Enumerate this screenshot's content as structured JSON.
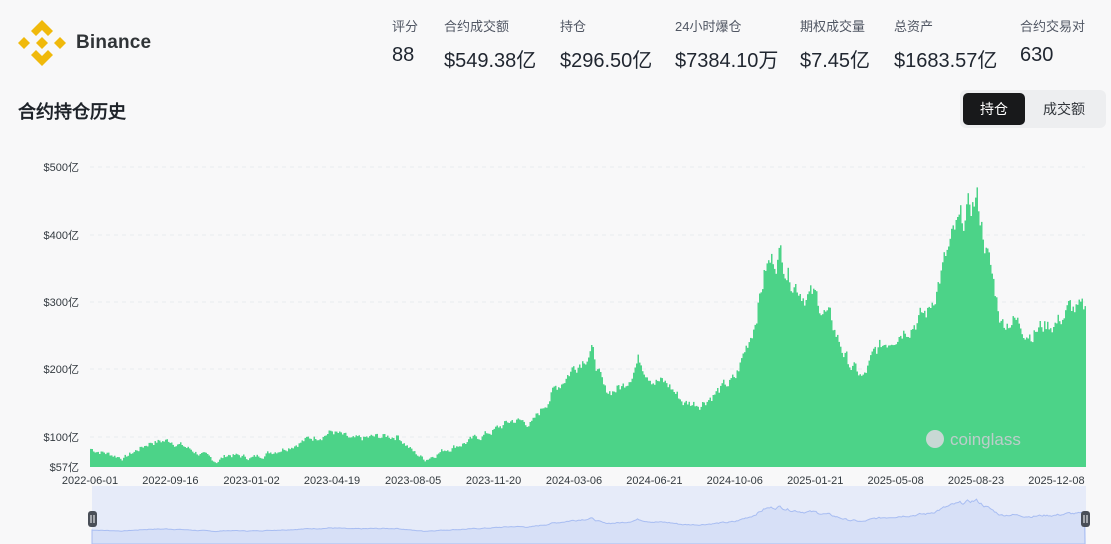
{
  "brand": {
    "name": "Binance",
    "logo_color": "#F0B90B"
  },
  "stats": [
    {
      "label": "评分",
      "value": "88"
    },
    {
      "label": "合约成交额",
      "value": "$549.38亿"
    },
    {
      "label": "持仓",
      "value": "$296.50亿"
    },
    {
      "label": "24小时爆仓",
      "value": "$7384.10万"
    },
    {
      "label": "期权成交量",
      "value": "$7.45亿"
    },
    {
      "label": "总资产",
      "value": "$1683.57亿"
    },
    {
      "label": "合约交易对",
      "value": "630"
    }
  ],
  "section": {
    "title": "合约持仓历史"
  },
  "toggle": {
    "active": "持仓",
    "inactive": "成交额"
  },
  "watermark": "coinglass",
  "colors": {
    "bars": "#4cd388",
    "grid": "#e9ebee",
    "navigator": "#e6ebf9",
    "navigator_line": "#a8bdf2"
  },
  "chart_data": {
    "type": "bar",
    "y_tick_labels": [
      "$57亿",
      "$100亿",
      "$200亿",
      "$300亿",
      "$400亿",
      "$500亿"
    ],
    "y_ticks": [
      57,
      100,
      200,
      300,
      400,
      500
    ],
    "ylim": [
      57,
      500
    ],
    "x_tick_labels": [
      "2022-06-01",
      "2022-09-16",
      "2023-01-02",
      "2023-04-19",
      "2023-08-05",
      "2023-11-20",
      "2024-03-06",
      "2024-06-21",
      "2024-10-06",
      "2025-01-21",
      "2025-05-08",
      "2025-08-23",
      "2025-12-08"
    ],
    "grid": true,
    "legend": "none",
    "series": [
      {
        "x": [
          "2022-06-01",
          "2022-07-15",
          "2022-08-20",
          "2022-09-16",
          "2022-10-20",
          "2022-11-15",
          "2022-12-01",
          "2023-01-02",
          "2023-02-15",
          "2023-03-20",
          "2023-04-19",
          "2023-05-15",
          "2023-06-15",
          "2023-07-15",
          "2023-08-05",
          "2023-08-20",
          "2023-09-15",
          "2023-10-20",
          "2023-11-20",
          "2023-12-15",
          "2024-01-10",
          "2024-02-05",
          "2024-03-06",
          "2024-03-28",
          "2024-04-15",
          "2024-05-10",
          "2024-05-30",
          "2024-06-21",
          "2024-07-10",
          "2024-07-30",
          "2024-08-20",
          "2024-09-10",
          "2024-10-06",
          "2024-10-30",
          "2024-11-15",
          "2024-12-05",
          "2024-12-18",
          "2025-01-05",
          "2025-01-21",
          "2025-02-10",
          "2025-03-05",
          "2025-03-25",
          "2025-04-10",
          "2025-05-08",
          "2025-05-30",
          "2025-06-20",
          "2025-07-10",
          "2025-07-25",
          "2025-08-10",
          "2025-08-23",
          "2025-09-10",
          "2025-09-25",
          "2025-10-10",
          "2025-10-20",
          "2025-11-05",
          "2025-11-20",
          "2025-12-08",
          "2025-12-25",
          "2026-01-10"
        ],
        "values": [
          83,
          70,
          93,
          95,
          78,
          65,
          75,
          70,
          85,
          98,
          108,
          95,
          100,
          102,
          78,
          68,
          82,
          95,
          110,
          125,
          120,
          165,
          205,
          230,
          165,
          175,
          215,
          185,
          175,
          150,
          150,
          165,
          185,
          265,
          350,
          375,
          340,
          315,
          305,
          270,
          210,
          185,
          225,
          255,
          270,
          285,
          355,
          400,
          430,
          455,
          350,
          270,
          275,
          265,
          255,
          265,
          270,
          290,
          285
        ]
      }
    ]
  }
}
